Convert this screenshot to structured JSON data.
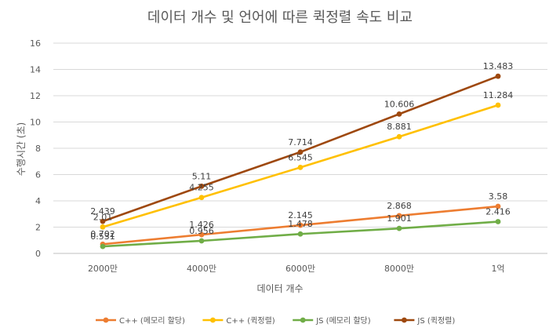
{
  "chart_data": {
    "type": "line",
    "title": "데이터 개수 및 언어에 따른 퀵정렬 속도 비교",
    "xlabel": "데이터 개수",
    "ylabel": "수행시간 (초)",
    "categories": [
      "2000만",
      "4000만",
      "6000만",
      "8000만",
      "1억"
    ],
    "ylim": [
      0,
      16
    ],
    "yticks": [
      0,
      2,
      4,
      6,
      8,
      10,
      12,
      14,
      16
    ],
    "grid": true,
    "legend_position": "bottom",
    "series": [
      {
        "name": "C++ (메모리 할당)",
        "color": "#ED7D31",
        "values": [
          0.702,
          1.426,
          2.145,
          2.868,
          3.58
        ],
        "labels": [
          "0.702",
          "1.426",
          "2.145",
          "2.868",
          "3.58"
        ]
      },
      {
        "name": "C++ (퀵정렬)",
        "color": "#FFC000",
        "values": [
          2.01,
          4.255,
          6.545,
          8.881,
          11.284
        ],
        "labels": [
          "2.01",
          "4.255",
          "6.545",
          "8.881",
          "11.284"
        ]
      },
      {
        "name": "JS (메모리 할당)",
        "color": "#70AD47",
        "values": [
          0.531,
          0.956,
          1.478,
          1.901,
          2.416
        ],
        "labels": [
          "0.531",
          "0.956",
          "1.478",
          "1.901",
          "2.416"
        ]
      },
      {
        "name": "JS (퀵정렬)",
        "color": "#9E480E",
        "values": [
          2.439,
          5.11,
          7.714,
          10.606,
          13.483
        ],
        "labels": [
          "2.439",
          "5.11",
          "7.714",
          "10.606",
          "13.483"
        ]
      }
    ]
  }
}
